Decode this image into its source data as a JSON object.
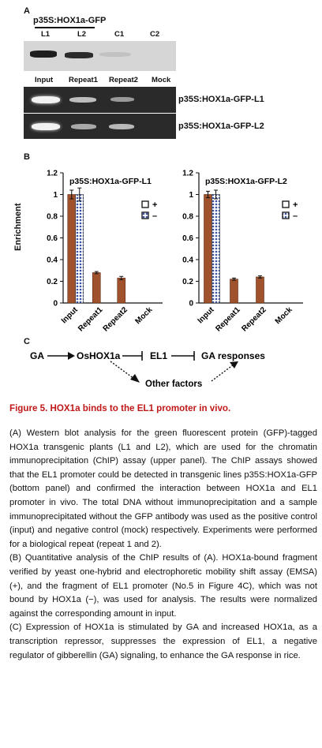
{
  "panel_a": {
    "label": "A",
    "construct": "p35S:HOX1a-GFP",
    "western_lanes": [
      "L1",
      "L2",
      "C1",
      "C2"
    ],
    "pcr_lanes": [
      "Input",
      "Repeat1",
      "Repeat2",
      "Mock"
    ],
    "gel1_label": "p35S:HOX1a-GFP-L1",
    "gel2_label": "p35S:HOX1a-GFP-L2"
  },
  "panel_b": {
    "label": "B",
    "ylabel": "Enrichment"
  },
  "panel_c": {
    "label": "C",
    "ga": "GA",
    "oshox": "OsHOX1a",
    "el1": "EL1",
    "responses": "GA responses",
    "other": "Other factors"
  },
  "chart_data": [
    {
      "type": "bar",
      "title": "p35S:HOX1a-GFP-L1",
      "ylabel": "Enrichment",
      "categories": [
        "Input",
        "Repeat1",
        "Repeat2",
        "Mock"
      ],
      "series": [
        {
          "name": "+",
          "values": [
            1.0,
            0.28,
            0.23,
            0.0
          ]
        },
        {
          "name": "–",
          "values": [
            1.0,
            0.0,
            0.0,
            0.0
          ]
        }
      ],
      "errors": [
        [
          0.04,
          0.01,
          0.015,
          0
        ],
        [
          0.06,
          0,
          0,
          0
        ]
      ],
      "ylim": [
        0,
        1.2
      ],
      "yticks": [
        "0",
        "0.2",
        "0.4",
        "0.6",
        "0.8",
        "1",
        "1.2"
      ],
      "legend": "top-right"
    },
    {
      "type": "bar",
      "title": "p35S:HOX1a-GFP-L2",
      "ylabel": "",
      "categories": [
        "Input",
        "Repeat1",
        "Repeat2",
        "Mock"
      ],
      "series": [
        {
          "name": "+",
          "values": [
            1.0,
            0.22,
            0.24,
            0.0
          ]
        },
        {
          "name": "–",
          "values": [
            1.0,
            0.0,
            0.0,
            0.0
          ]
        }
      ],
      "errors": [
        [
          0.03,
          0.01,
          0.01,
          0
        ],
        [
          0.04,
          0,
          0,
          0
        ]
      ],
      "ylim": [
        0,
        1.2
      ],
      "yticks": [
        "0",
        "0.2",
        "0.4",
        "0.6",
        "0.8",
        "1",
        "1.2"
      ],
      "legend": "top-right"
    }
  ],
  "caption": {
    "title": "Figure 5.  HOX1a binds to the EL1 promoter in vivo.",
    "para_a": "(A) Western blot analysis for the green fluorescent protein (GFP)-tagged HOX1a transgenic plants (L1 and L2), which are used for the chromatin immunoprecipitation (ChIP) assay (upper panel). The ChIP assays showed that the EL1 promoter could be detected in transgenic lines p35S:HOX1a-GFP (bottom panel) and confirmed the interaction between HOX1a and EL1 promoter in vivo. The total DNA without immunoprecipitation and a sample immunoprecipitated without the GFP antibody was used as the positive control (input) and negative control (mock) respectively. Experiments were performed for a biological repeat (repeat 1 and 2).",
    "para_b": "(B) Quantitative analysis of the ChIP results of (A). HOX1a-bound fragment verified by yeast one-hybrid and electrophoretic mobility shift assay (EMSA) (+), and the fragment of EL1 promoter (No.5 in Figure 4C), which was not bound by HOX1a (−), was used for analysis. The results were normalized against the corresponding amount in input.",
    "para_c": "(C) Expression of HOX1a is stimulated by GA and increased HOX1a, as a transcription repressor, suppresses the expression of EL1, a negative regulator of gibberellin (GA) signaling, to enhance the GA response in rice."
  },
  "colors": {
    "bar_plus": "#a0522d",
    "bar_minus_dots": "#3a4fa0",
    "caption_title": "#c01818"
  }
}
